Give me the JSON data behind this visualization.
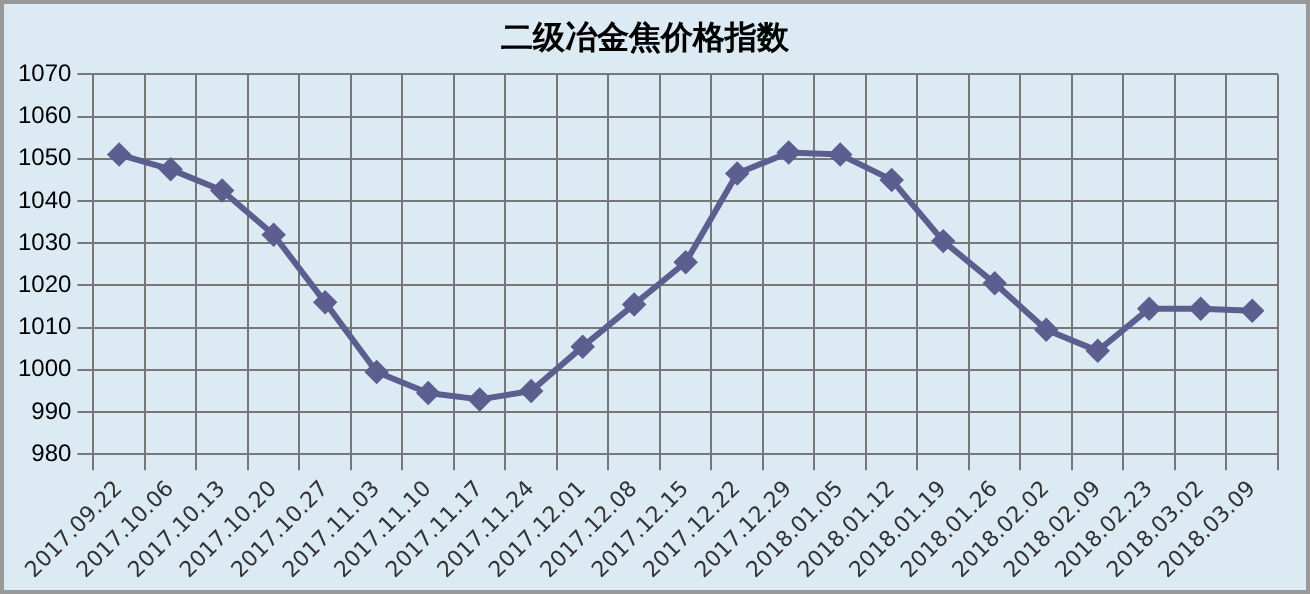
{
  "chart_data": {
    "type": "line",
    "title": "二级冶金焦价格指数",
    "categories": [
      "2017.09.22",
      "2017.10.06",
      "2017.10.13",
      "2017.10.20",
      "2017.10.27",
      "2017.11.03",
      "2017.11.10",
      "2017.11.17",
      "2017.11.24",
      "2017.12.01",
      "2017.12.08",
      "2017.12.15",
      "2017.12.22",
      "2017.12.29",
      "2018.01.05",
      "2018.01.12",
      "2018.01.19",
      "2018.01.26",
      "2018.02.02",
      "2018.02.09",
      "2018.02.23",
      "2018.03.02",
      "2018.03.09"
    ],
    "series": [
      {
        "color": "#5b5e8e",
        "values": [
          1051,
          1047.5,
          1042.5,
          1032,
          1016,
          999.5,
          994.5,
          993,
          995,
          1005.5,
          1015.5,
          1025.5,
          1046.5,
          1051.5,
          1051,
          1045,
          1030.5,
          1020.5,
          1009.5,
          1004.5,
          1014.5,
          1014.5,
          1014
        ]
      }
    ],
    "ylim": [
      980,
      1070
    ],
    "yticks": [
      980,
      990,
      1000,
      1010,
      1020,
      1030,
      1040,
      1050,
      1060,
      1070
    ],
    "grid": true,
    "legend": false,
    "marker": "diamond",
    "line_style": "solid"
  }
}
